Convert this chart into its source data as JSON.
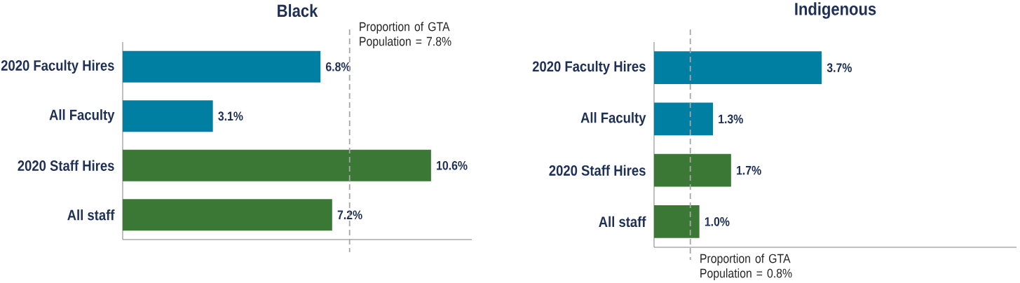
{
  "chart_data": [
    {
      "type": "bar",
      "orientation": "horizontal",
      "title": "Black",
      "categories": [
        "2020 Faculty Hires",
        "All Faculty",
        "2020 Staff Hires",
        "All staff"
      ],
      "values": [
        6.8,
        3.1,
        10.6,
        7.2
      ],
      "colors": [
        "#007fa3",
        "#007fa3",
        "#3b7735",
        "#3b7735"
      ],
      "value_labels": [
        "6.8%",
        "3.1%",
        "10.6%",
        "7.2%"
      ],
      "xlim": [
        0,
        12
      ],
      "tick_labels": "y",
      "ref_lines": [
        {
          "axis": "x",
          "value": 7.8,
          "label": "Proportion of GTA Population = 7.8%",
          "color": "#a6a6a6",
          "line_style": "dashed"
        }
      ]
    },
    {
      "type": "bar",
      "orientation": "horizontal",
      "title": "Indigenous",
      "categories": [
        "2020 Faculty Hires",
        "All Faculty",
        "2020 Staff Hires",
        "All staff"
      ],
      "values": [
        3.7,
        1.3,
        1.7,
        1.0
      ],
      "colors": [
        "#007fa3",
        "#007fa3",
        "#3b7735",
        "#3b7735"
      ],
      "value_labels": [
        "3.7%",
        "1.3%",
        "1.7%",
        "1.0%"
      ],
      "xlim": [
        0,
        8
      ],
      "tick_labels": "y",
      "ref_lines": [
        {
          "axis": "x",
          "value": 0.8,
          "label": "Proportion of GTA Population = 0.8%",
          "color": "#a6a6a6",
          "line_style": "dashed"
        }
      ]
    }
  ]
}
